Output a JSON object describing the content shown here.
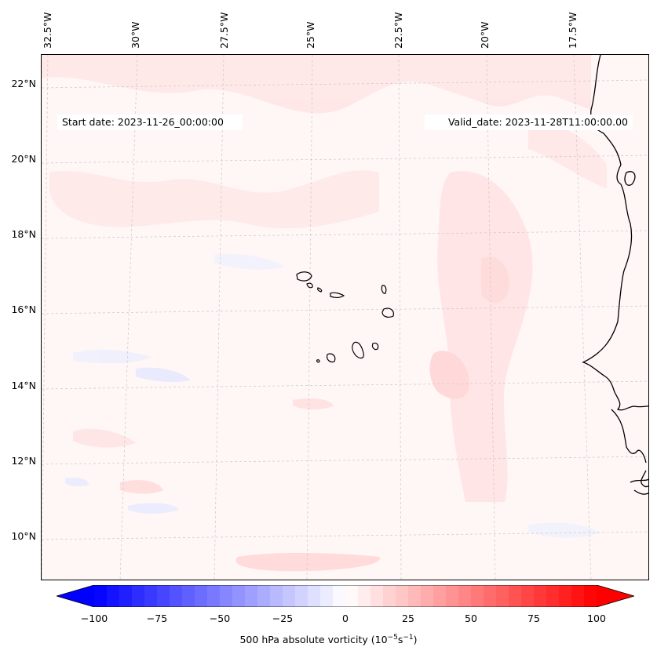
{
  "map": {
    "start_label": "Start date: 2023-11-26_00:00:00",
    "valid_label": "Valid_date: 2023-11-28T11:00:00.00",
    "longitude_labels": [
      "32.5°W",
      "30°W",
      "27.5°W",
      "25°W",
      "22.5°W",
      "20°W",
      "17.5°W"
    ],
    "latitude_labels": [
      "22°N",
      "20°N",
      "18°N",
      "16°N",
      "14°N",
      "12°N",
      "10°N"
    ],
    "field": "500 hPa absolute vorticity",
    "colors": {
      "negative": "#0000ff",
      "zero": "#ffffff",
      "positive": "#ff0000",
      "coast": "#000000",
      "grid": "#c8c8c8"
    }
  },
  "colorbar": {
    "ticks": [
      "−100",
      "−75",
      "−50",
      "−25",
      "0",
      "25",
      "50",
      "75",
      "100"
    ],
    "label": "500 hPa absolute vorticity (10",
    "label_exp1": "−5",
    "label_mid": "s",
    "label_exp2": "−1",
    "label_end": ")",
    "range": [
      -100,
      100
    ],
    "levels": 41
  }
}
